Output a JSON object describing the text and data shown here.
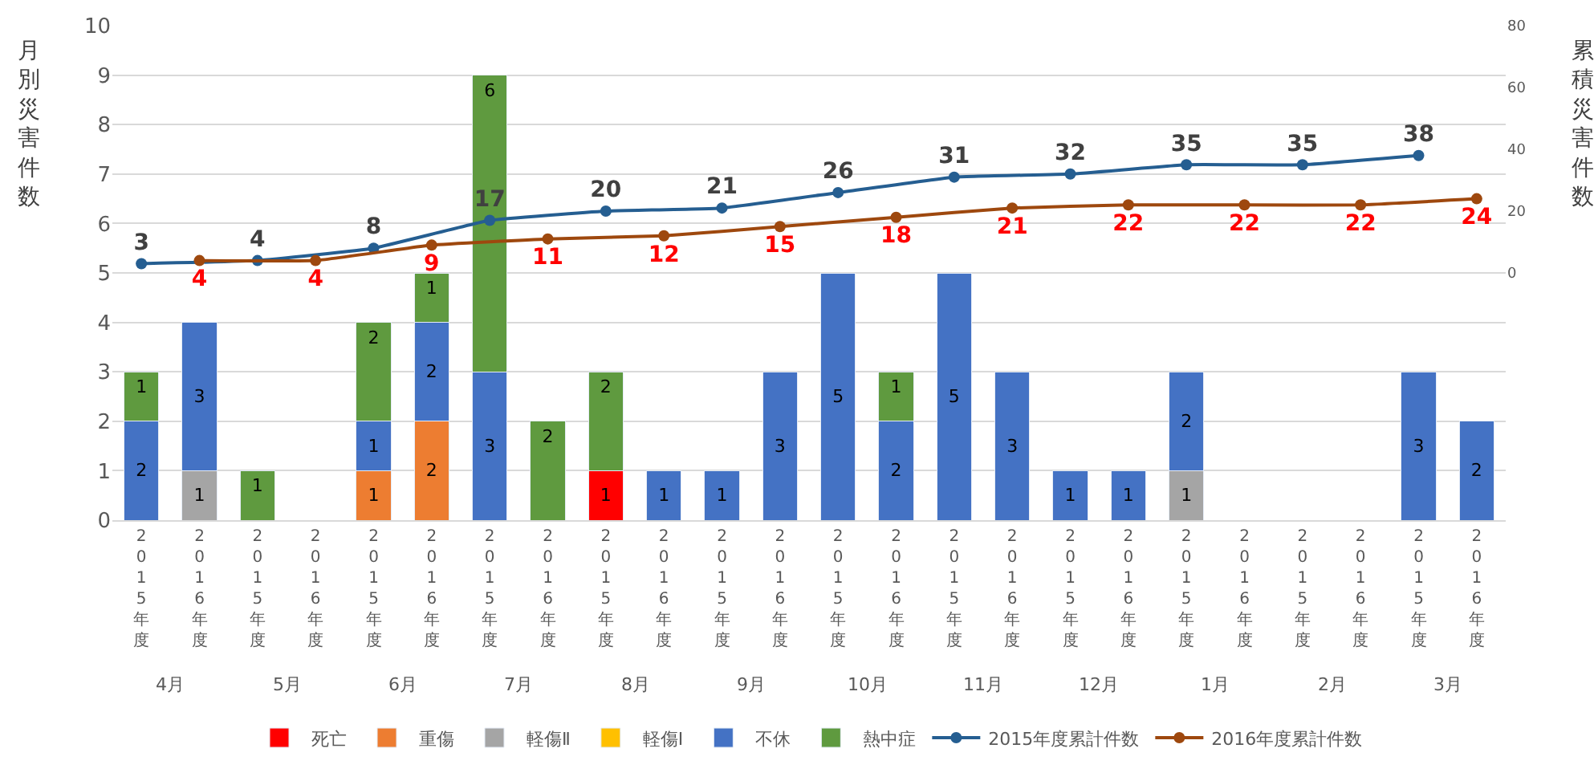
{
  "chart_data": {
    "type": "bar",
    "stacked": true,
    "ylabel": "月別災害件数",
    "y2label": "累積災害件数",
    "categories": [
      "2015年度",
      "2016年度",
      "2015年度",
      "2016年度",
      "2015年度",
      "2016年度",
      "2015年度",
      "2016年度",
      "2015年度",
      "2016年度",
      "2015年度",
      "2016年度",
      "2015年度",
      "2016年度",
      "2015年度",
      "2016年度",
      "2015年度",
      "2016年度",
      "2015年度",
      "2016年度",
      "2015年度",
      "2016年度",
      "2015年度",
      "2016年度"
    ],
    "annotations": [
      "4月",
      "5月",
      "6月",
      "7月",
      "8月",
      "9月",
      "10月",
      "11月",
      "12月",
      "1月",
      "2月",
      "3月"
    ],
    "ylim": [
      0,
      10
    ],
    "yticks": [
      0,
      1,
      2,
      3,
      4,
      5,
      6,
      7,
      8,
      9,
      10
    ],
    "y2lim": [
      -80,
      80
    ],
    "y2ticks": [
      0,
      20,
      40,
      60,
      80
    ],
    "grid": "y",
    "legend": "bottom",
    "data_labels": true,
    "marker": "circle",
    "series": [
      {
        "name": "死亡",
        "color": "#ff0000",
        "values": [
          null,
          null,
          null,
          null,
          null,
          null,
          null,
          null,
          1,
          null,
          null,
          null,
          null,
          null,
          null,
          null,
          null,
          null,
          null,
          null,
          null,
          null,
          null,
          null
        ]
      },
      {
        "name": "重傷",
        "color": "#ed7d31",
        "values": [
          null,
          null,
          null,
          null,
          1,
          2,
          null,
          null,
          null,
          null,
          null,
          null,
          null,
          null,
          null,
          null,
          null,
          null,
          null,
          null,
          null,
          null,
          null,
          null
        ]
      },
      {
        "name": "軽傷Ⅱ",
        "color": "#a5a5a5",
        "values": [
          null,
          1,
          null,
          null,
          null,
          null,
          null,
          null,
          null,
          null,
          null,
          null,
          null,
          null,
          null,
          null,
          null,
          null,
          1,
          null,
          null,
          null,
          null,
          null
        ]
      },
      {
        "name": "軽傷Ⅰ",
        "color": "#ffc000",
        "values": [
          null,
          null,
          null,
          null,
          null,
          null,
          null,
          null,
          null,
          null,
          null,
          null,
          null,
          null,
          null,
          null,
          null,
          null,
          null,
          null,
          null,
          null,
          null,
          null
        ]
      },
      {
        "name": "不休",
        "color": "#4472c4",
        "values": [
          2,
          3,
          null,
          null,
          1,
          2,
          3,
          null,
          null,
          1,
          1,
          3,
          5,
          2,
          5,
          3,
          1,
          1,
          2,
          null,
          null,
          null,
          3,
          2
        ]
      },
      {
        "name": "熱中症",
        "color": "#5f9a3f",
        "values": [
          1,
          null,
          1,
          null,
          2,
          1,
          6,
          2,
          2,
          null,
          null,
          null,
          null,
          1,
          null,
          null,
          null,
          null,
          null,
          null,
          null,
          null,
          null,
          null
        ]
      },
      {
        "name": "2015年度累計件数",
        "type": "line",
        "axis": "y2",
        "color": "#255e91",
        "values": [
          3,
          null,
          4,
          null,
          8,
          null,
          17,
          null,
          20,
          null,
          21,
          null,
          26,
          null,
          31,
          null,
          32,
          null,
          35,
          null,
          35,
          null,
          38,
          null
        ]
      },
      {
        "name": "2016年度累計件数",
        "type": "line",
        "axis": "y2",
        "color": "#9e480e",
        "values": [
          null,
          4,
          null,
          4,
          null,
          9,
          null,
          11,
          null,
          12,
          null,
          15,
          null,
          18,
          null,
          21,
          null,
          22,
          null,
          22,
          null,
          22,
          null,
          24
        ]
      }
    ]
  }
}
